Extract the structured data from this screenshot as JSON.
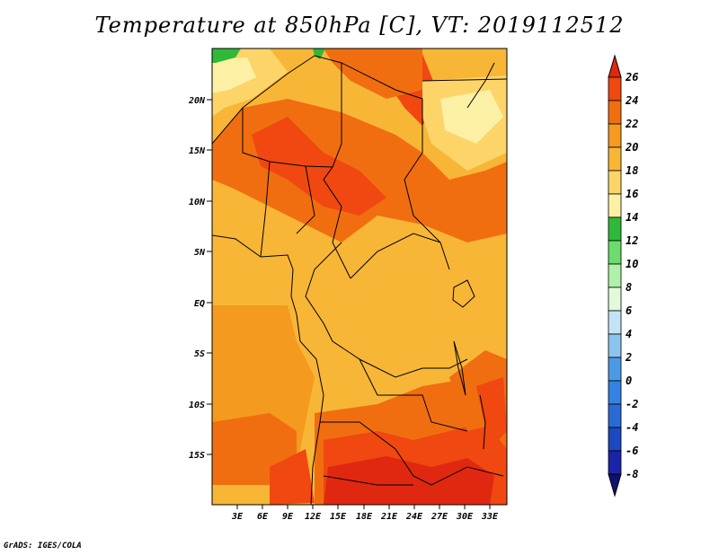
{
  "title": "Temperature at 850hPa [C], VT: 2019112512",
  "credit": "GrADS: IGES/COLA",
  "map": {
    "lon_range": [
      0,
      35
    ],
    "lat_range": [
      -20,
      25
    ],
    "lat_ticks": [
      "20N",
      "15N",
      "10N",
      "5N",
      "EQ",
      "5S",
      "10S",
      "15S"
    ],
    "lon_ticks": [
      "3E",
      "6E",
      "9E",
      "12E",
      "15E",
      "18E",
      "21E",
      "24E",
      "27E",
      "30E",
      "33E"
    ]
  },
  "colorbar": {
    "labels": [
      "26",
      "24",
      "22",
      "20",
      "18",
      "16",
      "14",
      "12",
      "10",
      "8",
      "6",
      "4",
      "2",
      "0",
      "-2",
      "-4",
      "-6",
      "-8"
    ],
    "colors": [
      "#e02810",
      "#f04810",
      "#f06e10",
      "#f49a1e",
      "#f8b636",
      "#fcd468",
      "#fcf0a4",
      "#30b838",
      "#6cdc6c",
      "#b0f0aa",
      "#e2fadc",
      "#c4e4f6",
      "#8cc4ee",
      "#4c9ae4",
      "#3482e4",
      "#2a6ad4",
      "#1c48c0",
      "#1a24a8",
      "#101070"
    ]
  },
  "palette": {
    "deep_red": "#e02810",
    "red_orange": "#f04810",
    "orange": "#f06e10",
    "light_orange": "#f49a1e",
    "amber": "#f8b636",
    "pale_yellow": "#fcd468",
    "cream": "#fcf0a4",
    "green": "#30b838"
  }
}
